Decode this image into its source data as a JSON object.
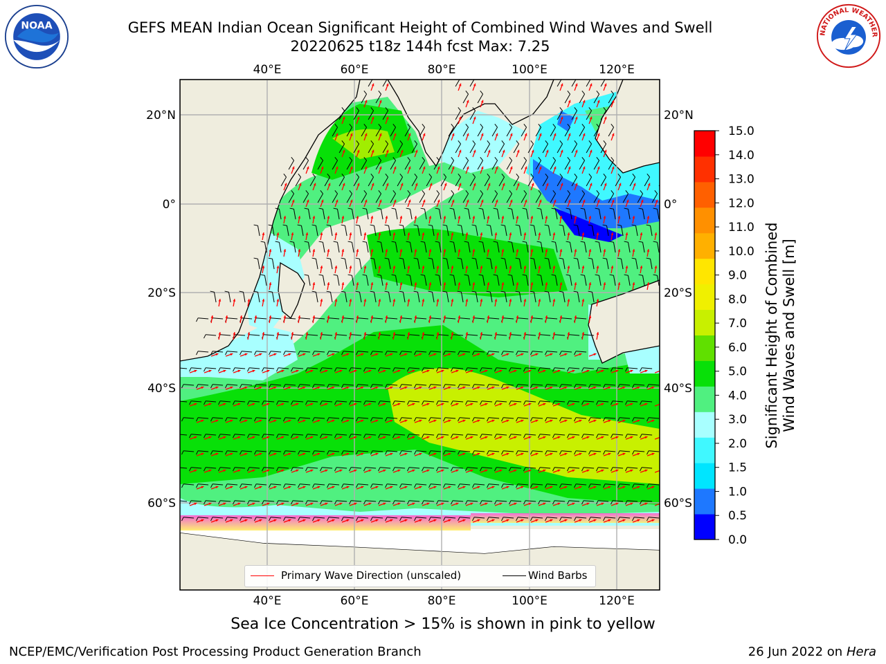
{
  "title": {
    "line1": "GEFS MEAN Indian Ocean Significant Height of Combined Wind Waves and Swell",
    "line2": "20220625 t18z 144h fcst   Max: 7.25"
  },
  "logos": {
    "noaa": {
      "icon": "noaa-logo",
      "text": "NOAA"
    },
    "nws": {
      "icon": "national-weather-service-logo",
      "text": "NATIONAL WEATHER SERVICE"
    }
  },
  "map": {
    "lon_ticks": [
      "40°E",
      "60°E",
      "80°E",
      "100°E",
      "120°E"
    ],
    "lat_ticks_left": [
      "20°N",
      "0°",
      "20°S",
      "40°S",
      "60°S"
    ],
    "lat_ticks_right": [
      "20°N",
      "0°",
      "20°S",
      "40°S",
      "60°S"
    ],
    "colors": {
      "land": "#efedde",
      "coast": "#000000",
      "grid": "#b0b0b0",
      "wave_arrow": "#ff0000",
      "wind_barb": "#000000",
      "sea_ice_low": "#ff55cc",
      "sea_ice_high": "#ffee66"
    }
  },
  "colorbar": {
    "label_line1": "Significant Height of Combined",
    "label_line2": "Wind Waves and Swell [m]",
    "ticks": [
      "0.0",
      "0.5",
      "1.0",
      "1.5",
      "2.0",
      "3.0",
      "4.0",
      "5.0",
      "6.0",
      "7.0",
      "8.0",
      "9.0",
      "10.0",
      "11.0",
      "12.0",
      "13.0",
      "14.0",
      "15.0"
    ],
    "colors": [
      "#0000ff",
      "#1e78ff",
      "#00e5ff",
      "#40f8ff",
      "#a8ffff",
      "#50f080",
      "#08e008",
      "#60e000",
      "#c8f000",
      "#f0f000",
      "#ffe600",
      "#ffb000",
      "#ff9000",
      "#ff6000",
      "#ff3000",
      "#ff0000"
    ]
  },
  "legend": {
    "wave": "Primary Wave Direction (unscaled)",
    "wind": "Wind Barbs"
  },
  "footer": {
    "note": "Sea Ice Concentration > 15% is shown in pink to yellow",
    "left": "NCEP/EMC/Verification Post Processing Product Generation Branch",
    "right_date": "26 Jun 2022 on",
    "right_host": "Hera"
  }
}
